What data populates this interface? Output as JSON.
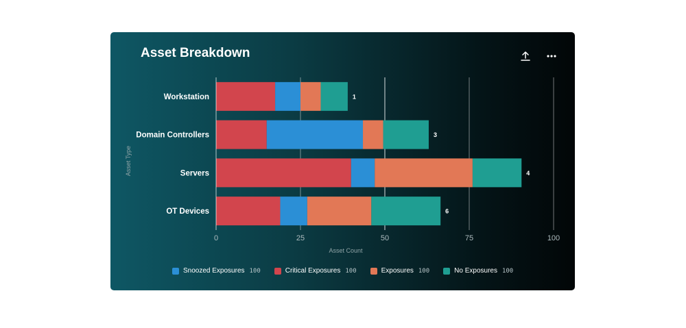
{
  "card": {
    "title": "Asset Breakdown",
    "share_icon": "upload-icon",
    "more_icon": "more-horizontal-icon"
  },
  "chart_data": {
    "type": "bar",
    "orientation": "horizontal",
    "stacked": true,
    "title": "Asset Breakdown",
    "xlabel": "Asset Count",
    "ylabel": "Asset Type",
    "xlim": [
      0,
      100
    ],
    "xticks": [
      0,
      25,
      50,
      75,
      100
    ],
    "grid": true,
    "legend_position": "bottom",
    "categories": [
      "Workstation",
      "Domain Controllers",
      "Servers",
      "OT Devices"
    ],
    "series": [
      {
        "name": "Critical Exposures",
        "color": "#d2454d",
        "values": [
          17.5,
          15,
          40,
          19
        ]
      },
      {
        "name": "Snoozed Exposures",
        "color": "#2b8fd6",
        "values": [
          7.5,
          28.5,
          7,
          8
        ]
      },
      {
        "name": "Exposures",
        "color": "#e27856",
        "values": [
          6,
          6,
          29,
          19
        ]
      },
      {
        "name": "No Exposures",
        "color": "#1f9e92",
        "values": [
          8,
          13.5,
          14.5,
          20.5
        ]
      }
    ],
    "bar_labels": [
      "1",
      "3",
      "4",
      "6"
    ],
    "legend": [
      {
        "name": "Snoozed Exposures",
        "color": "#2b8fd6",
        "count": "100"
      },
      {
        "name": "Critical Exposures",
        "color": "#d2454d",
        "count": "100"
      },
      {
        "name": "Exposures",
        "color": "#e27856",
        "count": "100"
      },
      {
        "name": "No Exposures",
        "color": "#1f9e92",
        "count": "100"
      }
    ]
  }
}
